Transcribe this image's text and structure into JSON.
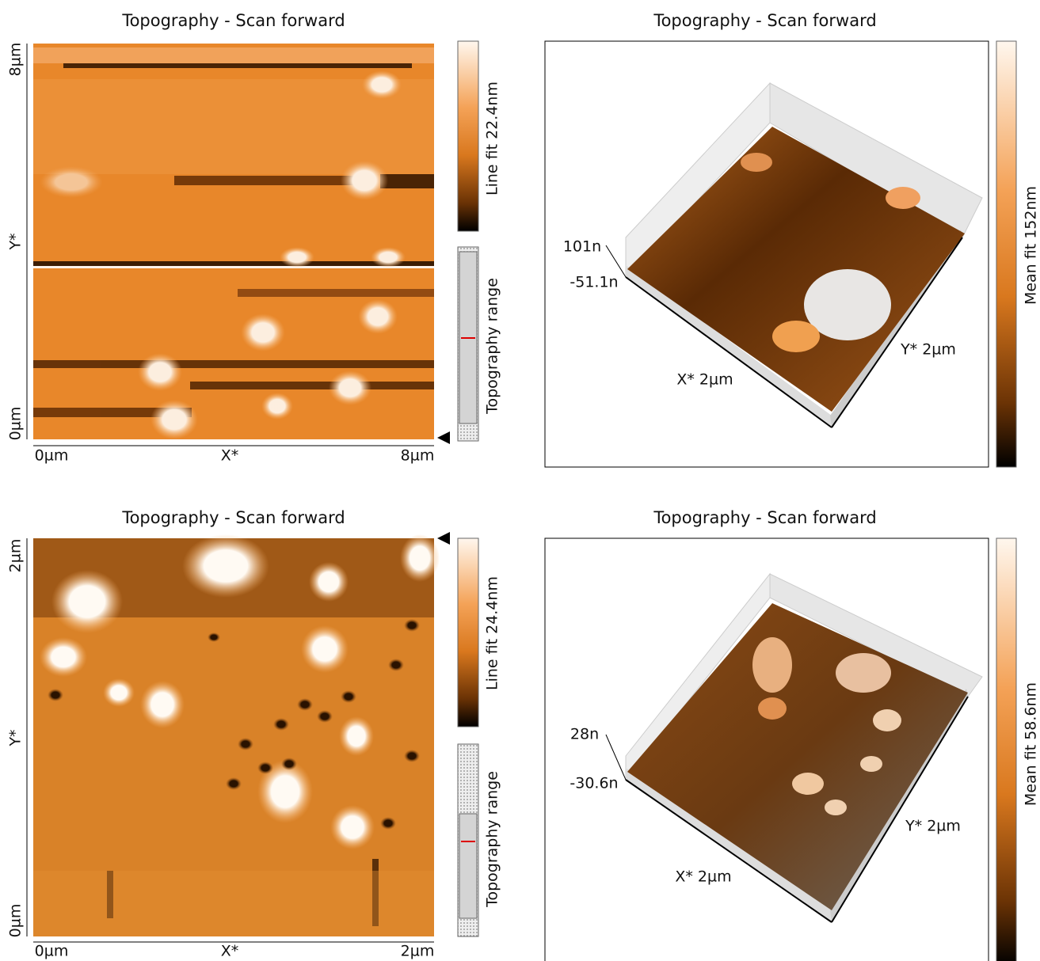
{
  "panels": [
    {
      "title": "Topography - Scan forward",
      "y_labels": [
        "8µm",
        "Y*",
        "0µm"
      ],
      "x_labels": [
        "0µm",
        "X*",
        "8µm"
      ],
      "colorbar_label": "Line fit 22.4nm",
      "range_label": "Topography range"
    },
    {
      "title": "Topography - Scan forward",
      "z_labels": [
        "101n",
        "-51.1n"
      ],
      "x_label": "X* 2µm",
      "y_label": "Y* 2µm",
      "colorbar_label": "Mean fit 152nm"
    },
    {
      "title": "Topography - Scan forward",
      "y_labels": [
        "2µm",
        "Y*",
        "0µm"
      ],
      "x_labels": [
        "0µm",
        "X*",
        "2µm"
      ],
      "colorbar_label": "Line fit 24.4nm",
      "range_label": "Topography range"
    },
    {
      "title": "Topography - Scan forward",
      "z_labels": [
        "28n",
        "-30.6n"
      ],
      "x_label": "X* 2µm",
      "y_label": "Y* 2µm",
      "colorbar_label": "Mean fit 58.6nm"
    }
  ]
}
